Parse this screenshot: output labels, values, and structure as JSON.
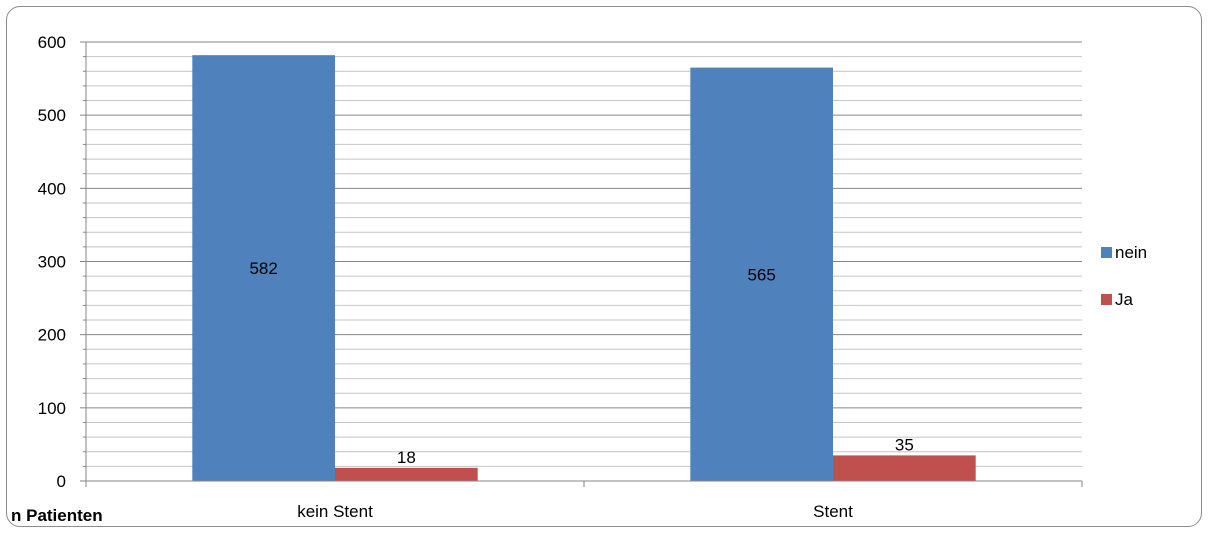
{
  "chart_data": {
    "type": "bar",
    "categories": [
      "kein Stent",
      "Stent"
    ],
    "series": [
      {
        "name": "nein",
        "values": [
          582,
          565
        ],
        "color": "#4F81BD"
      },
      {
        "name": "Ja",
        "values": [
          18,
          35
        ],
        "color": "#C0504D"
      }
    ],
    "ylim": [
      0,
      600
    ],
    "yticks": [
      0,
      100,
      200,
      300,
      400,
      500,
      600
    ],
    "ylabel": "n Patienten",
    "grid": true,
    "legend_position": "right"
  }
}
